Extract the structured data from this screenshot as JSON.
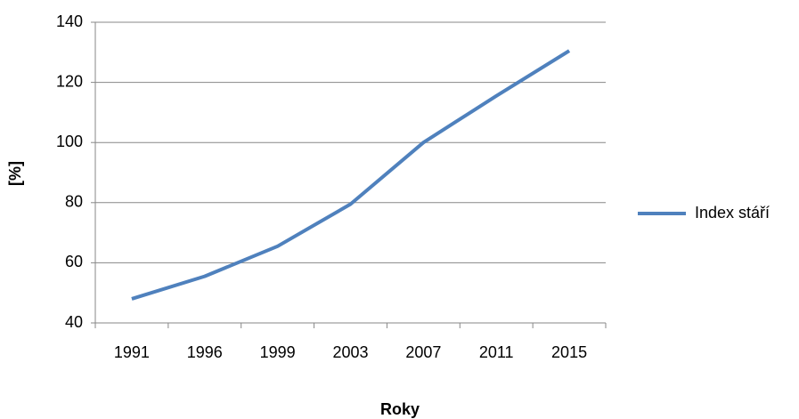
{
  "chart_data": {
    "type": "line",
    "x_label": "Roky",
    "y_label": "[%]",
    "categories": [
      "1991",
      "1996",
      "1999",
      "2003",
      "2007",
      "2011",
      "2015"
    ],
    "series": [
      {
        "name": "Index stáří",
        "color": "#4f81bd",
        "values": [
          48,
          55.5,
          65.5,
          79.5,
          100,
          115.5,
          130.5
        ]
      }
    ],
    "ylim": [
      40,
      140
    ],
    "yticks": [
      40,
      60,
      80,
      100,
      120,
      140
    ],
    "grid": true,
    "legend": "right"
  }
}
